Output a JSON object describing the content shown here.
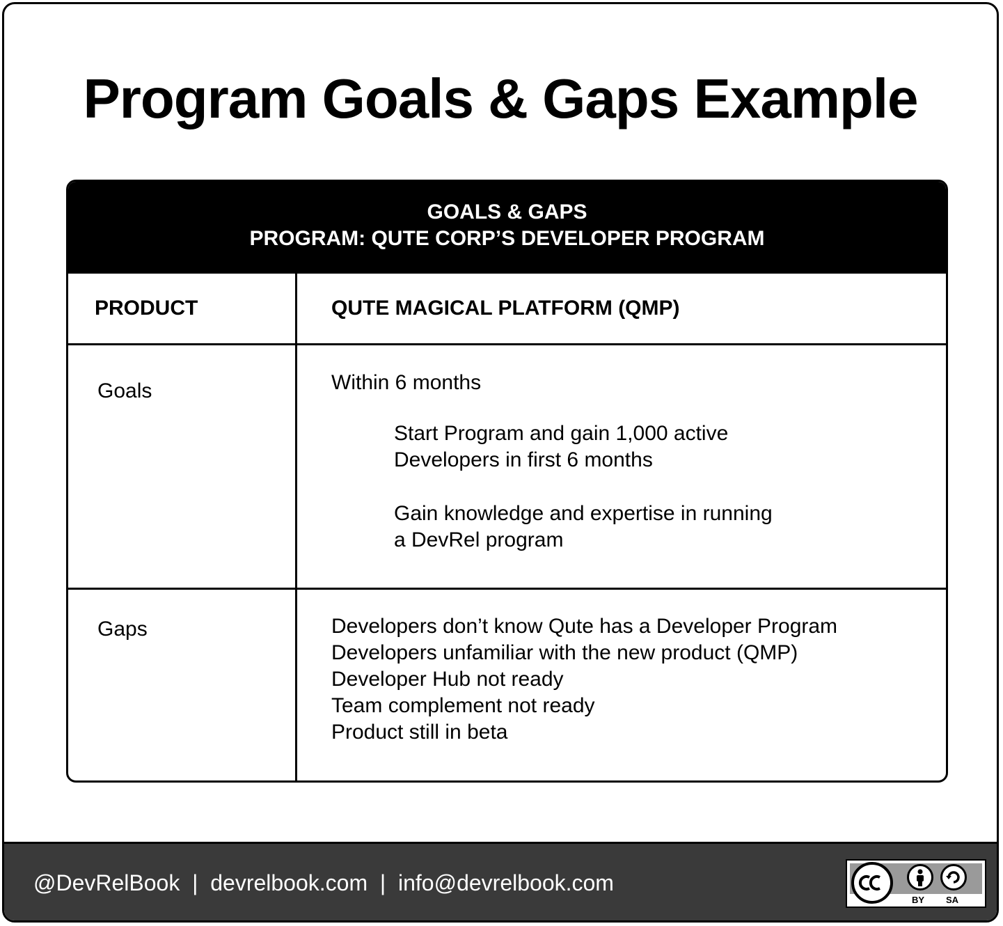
{
  "title": "Program Goals & Gaps Example",
  "table": {
    "header_line1": "GOALS & GAPS",
    "header_line2": "PROGRAM: QUTE CORP’S DEVELOPER PROGRAM",
    "product_label": "PRODUCT",
    "product_value": "QUTE MAGICAL PLATFORM (QMP)",
    "goals_label": "Goals",
    "goals_timeframe": "Within 6 months",
    "goals_items": [
      [
        "Start Program and gain 1,000 active",
        "Developers in first 6 months"
      ],
      [
        "Gain knowledge and expertise in running",
        "a DevRel program"
      ]
    ],
    "gaps_label": "Gaps",
    "gaps_items": [
      "Developers don’t know Qute has a Developer Program",
      "Developers unfamiliar with the new product (QMP)",
      "Developer Hub not ready",
      "Team complement not ready",
      "Product still in beta"
    ]
  },
  "footer": {
    "text": "@DevRelBook  |  devrelbook.com  |  info@devrelbook.com",
    "license_by": "BY",
    "license_sa": "SA",
    "license_icon": "creative-commons-by-sa-icon"
  }
}
